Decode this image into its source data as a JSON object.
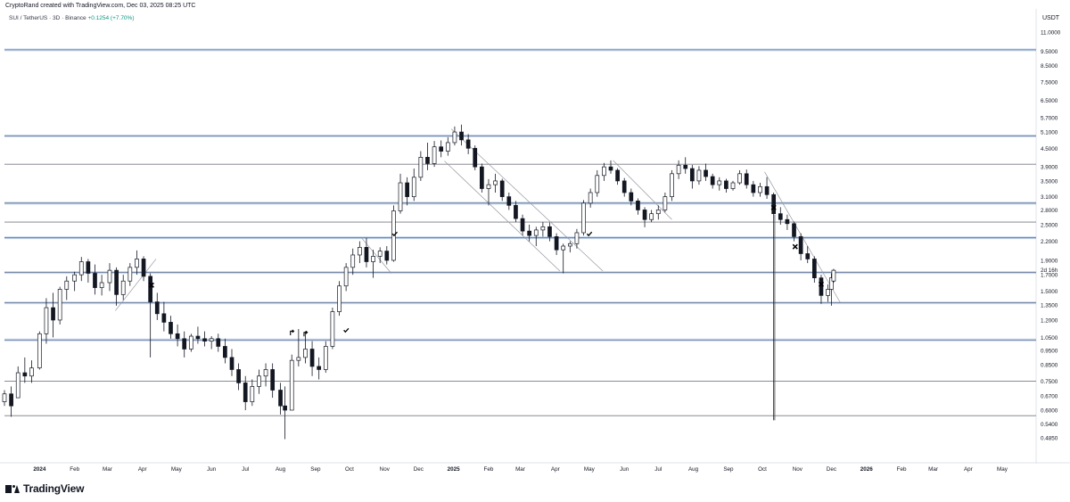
{
  "header": {
    "caption": "CryptoRand created with TradingView.com, Dec 03, 2025 08:25 UTC",
    "symbol": "SUI / TetherUS",
    "interval": "3D",
    "exchange": "Binance",
    "change": "+0.1254 (+7.70%)",
    "currency": "USDT"
  },
  "brand": {
    "name": "TradingView"
  },
  "colors": {
    "up": "#ffffff",
    "down": "#131722",
    "support": "#b2c8e8",
    "level": "#787b86",
    "trendline": "#9598a1",
    "change": "#089981"
  },
  "chart_data": {
    "type": "candlestick",
    "scale": "log",
    "y_ticks": [
      "11.0000",
      "9.5000",
      "8.5000",
      "7.5000",
      "6.5000",
      "5.7000",
      "5.1000",
      "4.5000",
      "3.9000",
      "3.5000",
      "3.1000",
      "2.8000",
      "2.5000",
      "2.2000",
      "1.9000",
      "1.7000",
      "1.5000",
      "1.3500",
      "1.2000",
      "1.0500",
      "0.9500",
      "0.8500",
      "0.7500",
      "0.6700",
      "0.6000",
      "0.5400",
      "0.4850"
    ],
    "price_label": "2d 16h",
    "x_labels": [
      "2024",
      "Feb",
      "Mar",
      "Apr",
      "May",
      "Jun",
      "Jul",
      "Aug",
      "Sep",
      "Oct",
      "Nov",
      "Dec",
      "2025",
      "Feb",
      "Mar",
      "Apr",
      "May",
      "Jun",
      "Jul",
      "Aug",
      "Sep",
      "Oct",
      "Nov",
      "Dec",
      "2026",
      "Feb",
      "Mar",
      "Apr",
      "May"
    ],
    "x_label_bold": [
      "2024",
      "2025",
      "2026"
    ],
    "start_date": "2023-12-01",
    "end_date": "2026-05-31",
    "horizontal_levels": [
      {
        "price": 9.6,
        "style": "support"
      },
      {
        "price": 4.95,
        "style": "support"
      },
      {
        "price": 3.98,
        "style": "level"
      },
      {
        "price": 2.95,
        "style": "support"
      },
      {
        "price": 2.55,
        "style": "level"
      },
      {
        "price": 2.26,
        "style": "support"
      },
      {
        "price": 1.73,
        "style": "support"
      },
      {
        "price": 1.37,
        "style": "support"
      },
      {
        "price": 1.03,
        "style": "support"
      },
      {
        "price": 0.75,
        "style": "level"
      },
      {
        "price": 0.575,
        "style": "level"
      }
    ],
    "trendlines": [
      [
        [
          "2024-03-08",
          1.29
        ],
        [
          "2024-04-13",
          1.92
        ]
      ],
      [
        [
          "2024-10-12",
          2.25
        ],
        [
          "2024-11-07",
          1.72
        ]
      ],
      [
        [
          "2024-12-24",
          4.08
        ],
        [
          "2025-04-05",
          1.75
        ]
      ],
      [
        [
          "2024-12-30",
          5.22
        ],
        [
          "2025-05-13",
          1.75
        ]
      ],
      [
        [
          "2025-05-22",
          4.1
        ],
        [
          "2025-07-13",
          2.6
        ]
      ],
      [
        [
          "2025-10-03",
          3.75
        ],
        [
          "2025-12-09",
          1.37
        ]
      ]
    ],
    "verticals": [
      {
        "date": "2025-10-12",
        "from": 0.555,
        "to": 2.7
      }
    ],
    "markers": [
      {
        "type": "x",
        "date": "2024-04-09",
        "price": 1.57
      },
      {
        "type": "check",
        "date": "2024-11-10",
        "price": 2.33
      },
      {
        "type": "check",
        "date": "2024-09-28",
        "price": 1.11
      },
      {
        "type": "arrow",
        "date": "2024-08-11",
        "price": 1.09
      },
      {
        "type": "arrow",
        "date": "2024-08-23",
        "price": 1.08
      },
      {
        "type": "check",
        "date": "2025-05-01",
        "price": 2.33
      },
      {
        "type": "x",
        "date": "2025-10-11",
        "price": 2.85
      },
      {
        "type": "x",
        "date": "2025-10-30",
        "price": 2.11
      },
      {
        "type": "x",
        "date": "2025-11-22",
        "price": 1.58
      }
    ],
    "candles": [
      [
        "2023-12-01",
        0.64,
        0.7,
        0.62,
        0.68
      ],
      [
        "2023-12-07",
        0.68,
        0.72,
        0.57,
        0.62
      ],
      [
        "2023-12-13",
        0.66,
        0.84,
        0.66,
        0.8
      ],
      [
        "2023-12-19",
        0.8,
        0.9,
        0.74,
        0.78
      ],
      [
        "2023-12-25",
        0.78,
        0.88,
        0.74,
        0.83
      ],
      [
        "2024-01-01",
        0.83,
        1.1,
        0.82,
        1.08
      ],
      [
        "2024-01-07",
        1.08,
        1.42,
        1.0,
        1.32
      ],
      [
        "2024-01-13",
        1.32,
        1.48,
        1.05,
        1.2
      ],
      [
        "2024-01-19",
        1.2,
        1.55,
        1.16,
        1.52
      ],
      [
        "2024-01-25",
        1.52,
        1.68,
        1.4,
        1.62
      ],
      [
        "2024-02-01",
        1.62,
        1.74,
        1.5,
        1.7
      ],
      [
        "2024-02-07",
        1.7,
        1.95,
        1.62,
        1.88
      ],
      [
        "2024-02-13",
        1.88,
        1.92,
        1.6,
        1.72
      ],
      [
        "2024-02-19",
        1.72,
        1.84,
        1.46,
        1.54
      ],
      [
        "2024-02-25",
        1.54,
        1.7,
        1.45,
        1.6
      ],
      [
        "2024-03-03",
        1.6,
        1.86,
        1.5,
        1.76
      ],
      [
        "2024-03-09",
        1.76,
        1.8,
        1.34,
        1.46
      ],
      [
        "2024-03-15",
        1.46,
        1.7,
        1.4,
        1.62
      ],
      [
        "2024-03-21",
        1.62,
        1.86,
        1.56,
        1.8
      ],
      [
        "2024-03-27",
        1.8,
        2.05,
        1.7,
        1.92
      ],
      [
        "2024-04-02",
        1.92,
        1.96,
        1.62,
        1.68
      ],
      [
        "2024-04-08",
        1.68,
        1.72,
        0.9,
        1.38
      ],
      [
        "2024-04-14",
        1.38,
        1.48,
        1.2,
        1.26
      ],
      [
        "2024-04-20",
        1.26,
        1.38,
        1.1,
        1.18
      ],
      [
        "2024-04-26",
        1.18,
        1.24,
        1.04,
        1.08
      ],
      [
        "2024-05-02",
        1.08,
        1.16,
        0.98,
        1.04
      ],
      [
        "2024-05-08",
        1.04,
        1.1,
        0.9,
        0.96
      ],
      [
        "2024-05-14",
        0.96,
        1.08,
        0.94,
        1.06
      ],
      [
        "2024-05-20",
        1.06,
        1.14,
        1.0,
        1.04
      ],
      [
        "2024-05-26",
        1.04,
        1.1,
        0.98,
        1.02
      ],
      [
        "2024-06-01",
        1.02,
        1.06,
        0.96,
        1.04
      ],
      [
        "2024-06-07",
        1.04,
        1.08,
        0.94,
        0.98
      ],
      [
        "2024-06-13",
        0.98,
        1.04,
        0.86,
        0.9
      ],
      [
        "2024-06-19",
        0.9,
        0.96,
        0.78,
        0.82
      ],
      [
        "2024-06-25",
        0.82,
        0.86,
        0.7,
        0.74
      ],
      [
        "2024-07-01",
        0.74,
        0.78,
        0.6,
        0.64
      ],
      [
        "2024-07-07",
        0.64,
        0.76,
        0.62,
        0.72
      ],
      [
        "2024-07-13",
        0.72,
        0.82,
        0.68,
        0.78
      ],
      [
        "2024-07-19",
        0.78,
        0.86,
        0.72,
        0.82
      ],
      [
        "2024-07-25",
        0.82,
        0.86,
        0.66,
        0.7
      ],
      [
        "2024-08-01",
        0.7,
        0.74,
        0.58,
        0.62
      ],
      [
        "2024-08-05",
        0.62,
        0.72,
        0.48,
        0.6
      ],
      [
        "2024-08-11",
        0.6,
        0.92,
        0.6,
        0.88
      ],
      [
        "2024-08-17",
        0.88,
        1.12,
        0.84,
        0.9
      ],
      [
        "2024-08-23",
        0.9,
        1.1,
        0.86,
        0.96
      ],
      [
        "2024-08-29",
        0.96,
        1.02,
        0.78,
        0.84
      ],
      [
        "2024-09-04",
        0.84,
        0.9,
        0.76,
        0.82
      ],
      [
        "2024-09-10",
        0.82,
        1.02,
        0.8,
        0.98
      ],
      [
        "2024-09-16",
        0.98,
        1.32,
        0.96,
        1.28
      ],
      [
        "2024-09-22",
        1.28,
        1.62,
        1.24,
        1.56
      ],
      [
        "2024-09-28",
        1.56,
        1.86,
        1.5,
        1.8
      ],
      [
        "2024-10-04",
        1.8,
        2.08,
        1.7,
        1.98
      ],
      [
        "2024-10-10",
        1.98,
        2.2,
        1.86,
        2.1
      ],
      [
        "2024-10-16",
        2.1,
        2.26,
        1.8,
        1.88
      ],
      [
        "2024-10-22",
        1.88,
        2.06,
        1.66,
        1.96
      ],
      [
        "2024-10-28",
        1.96,
        2.1,
        1.86,
        2.04
      ],
      [
        "2024-11-03",
        2.04,
        2.12,
        1.84,
        1.9
      ],
      [
        "2024-11-09",
        1.9,
        2.9,
        1.88,
        2.78
      ],
      [
        "2024-11-15",
        2.78,
        3.7,
        2.72,
        3.45
      ],
      [
        "2024-11-21",
        3.45,
        3.6,
        2.9,
        3.1
      ],
      [
        "2024-11-27",
        3.1,
        3.85,
        3.0,
        3.6
      ],
      [
        "2024-12-03",
        3.6,
        4.4,
        3.5,
        4.2
      ],
      [
        "2024-12-09",
        4.2,
        4.7,
        3.8,
        4.0
      ],
      [
        "2024-12-15",
        4.0,
        4.76,
        3.9,
        4.55
      ],
      [
        "2024-12-21",
        4.55,
        4.78,
        4.2,
        4.4
      ],
      [
        "2024-12-27",
        4.4,
        4.9,
        4.25,
        4.7
      ],
      [
        "2025-01-02",
        4.7,
        5.32,
        4.6,
        5.1
      ],
      [
        "2025-01-08",
        5.1,
        5.4,
        4.6,
        4.8
      ],
      [
        "2025-01-14",
        4.8,
        5.02,
        4.3,
        4.5
      ],
      [
        "2025-01-20",
        4.5,
        4.6,
        3.8,
        3.9
      ],
      [
        "2025-01-26",
        3.9,
        4.0,
        3.2,
        3.3
      ],
      [
        "2025-02-01",
        3.3,
        3.55,
        2.9,
        3.4
      ],
      [
        "2025-02-07",
        3.4,
        3.7,
        3.2,
        3.5
      ],
      [
        "2025-02-13",
        3.5,
        3.56,
        3.0,
        3.1
      ],
      [
        "2025-02-19",
        3.1,
        3.2,
        2.8,
        2.9
      ],
      [
        "2025-02-25",
        2.9,
        3.0,
        2.55,
        2.62
      ],
      [
        "2025-03-03",
        2.62,
        2.7,
        2.3,
        2.38
      ],
      [
        "2025-03-09",
        2.38,
        2.5,
        2.2,
        2.3
      ],
      [
        "2025-03-15",
        2.3,
        2.46,
        2.12,
        2.4
      ],
      [
        "2025-03-21",
        2.4,
        2.55,
        2.28,
        2.46
      ],
      [
        "2025-03-27",
        2.46,
        2.54,
        2.2,
        2.28
      ],
      [
        "2025-04-02",
        2.28,
        2.34,
        1.98,
        2.06
      ],
      [
        "2025-04-08",
        2.06,
        2.16,
        1.72,
        2.12
      ],
      [
        "2025-04-14",
        2.12,
        2.2,
        2.02,
        2.16
      ],
      [
        "2025-04-20",
        2.16,
        2.42,
        2.08,
        2.35
      ],
      [
        "2025-04-26",
        2.35,
        3.02,
        2.3,
        2.95
      ],
      [
        "2025-05-02",
        2.95,
        3.3,
        2.85,
        3.2
      ],
      [
        "2025-05-08",
        3.2,
        3.8,
        3.1,
        3.65
      ],
      [
        "2025-05-14",
        3.65,
        4.02,
        3.5,
        3.9
      ],
      [
        "2025-05-20",
        3.9,
        4.1,
        3.7,
        3.8
      ],
      [
        "2025-05-26",
        3.8,
        3.86,
        3.4,
        3.5
      ],
      [
        "2025-06-01",
        3.5,
        3.58,
        3.1,
        3.2
      ],
      [
        "2025-06-07",
        3.2,
        3.3,
        2.9,
        3.0
      ],
      [
        "2025-06-13",
        3.0,
        3.06,
        2.7,
        2.8
      ],
      [
        "2025-06-19",
        2.8,
        2.86,
        2.45,
        2.6
      ],
      [
        "2025-06-25",
        2.6,
        2.8,
        2.55,
        2.72
      ],
      [
        "2025-07-01",
        2.72,
        2.9,
        2.6,
        2.8
      ],
      [
        "2025-07-07",
        2.8,
        3.2,
        2.75,
        3.1
      ],
      [
        "2025-07-13",
        3.1,
        3.8,
        3.0,
        3.7
      ],
      [
        "2025-07-19",
        3.7,
        4.1,
        3.55,
        3.95
      ],
      [
        "2025-07-25",
        3.95,
        4.2,
        3.7,
        3.85
      ],
      [
        "2025-07-31",
        3.85,
        3.96,
        3.3,
        3.5
      ],
      [
        "2025-08-06",
        3.5,
        3.92,
        3.4,
        3.8
      ],
      [
        "2025-08-12",
        3.8,
        4.0,
        3.5,
        3.62
      ],
      [
        "2025-08-18",
        3.62,
        3.7,
        3.3,
        3.4
      ],
      [
        "2025-08-24",
        3.4,
        3.6,
        3.25,
        3.5
      ],
      [
        "2025-08-30",
        3.5,
        3.56,
        3.2,
        3.3
      ],
      [
        "2025-09-05",
        3.3,
        3.5,
        3.25,
        3.45
      ],
      [
        "2025-09-11",
        3.45,
        3.8,
        3.4,
        3.7
      ],
      [
        "2025-09-17",
        3.7,
        3.82,
        3.3,
        3.4
      ],
      [
        "2025-09-23",
        3.4,
        3.5,
        3.1,
        3.2
      ],
      [
        "2025-09-29",
        3.2,
        3.45,
        3.1,
        3.35
      ],
      [
        "2025-10-05",
        3.35,
        3.6,
        3.05,
        3.15
      ],
      [
        "2025-10-11",
        3.15,
        3.2,
        0.555,
        2.72
      ],
      [
        "2025-10-17",
        2.72,
        2.86,
        2.5,
        2.6
      ],
      [
        "2025-10-23",
        2.6,
        2.7,
        2.4,
        2.52
      ],
      [
        "2025-10-29",
        2.52,
        2.56,
        2.2,
        2.28
      ],
      [
        "2025-11-04",
        2.28,
        2.34,
        1.9,
        2.0
      ],
      [
        "2025-11-10",
        2.0,
        2.12,
        1.86,
        1.92
      ],
      [
        "2025-11-16",
        1.92,
        1.96,
        1.6,
        1.66
      ],
      [
        "2025-11-22",
        1.66,
        1.7,
        1.36,
        1.45
      ],
      [
        "2025-11-28",
        1.45,
        1.58,
        1.38,
        1.52
      ],
      [
        "2025-12-01",
        1.52,
        1.72,
        1.34,
        1.66
      ],
      [
        "2025-12-03",
        1.62,
        1.78,
        1.6,
        1.76
      ]
    ]
  }
}
